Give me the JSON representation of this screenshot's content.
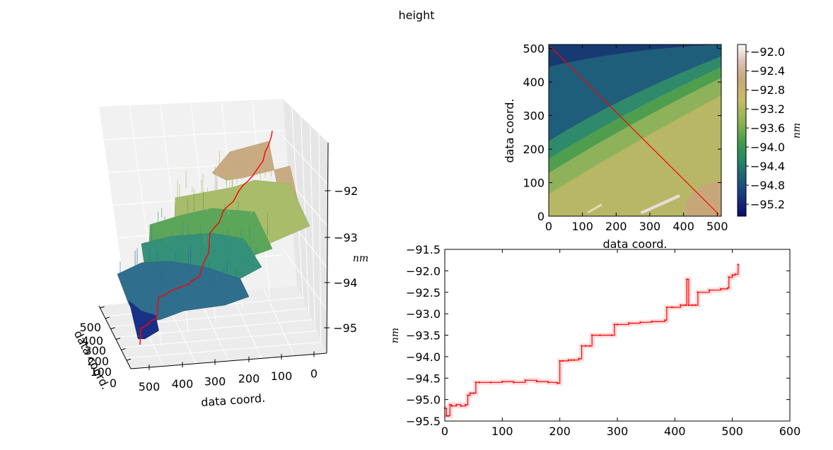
{
  "figure": {
    "title": "height"
  },
  "chart_data": [
    {
      "type": "surface3d",
      "xlabel": "data coord.",
      "ylabel": "data coord.",
      "zlabel": "nm",
      "x_ticks": [
        "500",
        "400",
        "300",
        "200",
        "100",
        "0"
      ],
      "y_ticks": [
        "500",
        "400",
        "300",
        "200",
        "100",
        "0"
      ],
      "z_ticks": [
        "−92",
        "−93",
        "−94",
        "−95"
      ],
      "colormap": "gist_earth",
      "profile_color": "#ff0000"
    },
    {
      "type": "heatmap",
      "xlabel": "data coord.",
      "ylabel": "data coord.",
      "xlim": [
        0,
        512
      ],
      "ylim": [
        0,
        512
      ],
      "x_ticks": [
        "0",
        "100",
        "200",
        "300",
        "400",
        "500"
      ],
      "y_ticks": [
        "0",
        "100",
        "200",
        "300",
        "400",
        "500"
      ],
      "colorbar": {
        "label": "nm",
        "ticks": [
          "−92.0",
          "−92.4",
          "−92.8",
          "−93.2",
          "−93.6",
          "−94.0",
          "−94.4",
          "−94.8",
          "−95.2"
        ],
        "tick_values": [
          -92.0,
          -92.4,
          -92.8,
          -93.2,
          -93.6,
          -94.0,
          -94.4,
          -94.8,
          -95.2
        ],
        "range": [
          -95.45,
          -91.85
        ]
      },
      "profile_line": {
        "from": [
          5,
          505
        ],
        "to": [
          505,
          5
        ],
        "color": "#ff0000"
      }
    },
    {
      "type": "line",
      "xlabel": "",
      "ylabel": "nm",
      "xlim": [
        0,
        600
      ],
      "ylim": [
        -95.5,
        -91.5
      ],
      "x_ticks": [
        "0",
        "100",
        "200",
        "300",
        "400",
        "500",
        "600"
      ],
      "y_ticks": [
        "−91.5",
        "−92.0",
        "−92.5",
        "−93.0",
        "−93.5",
        "−94.0",
        "−94.5",
        "−95.0",
        "−95.5"
      ],
      "series": [
        {
          "color": "#ff0000",
          "x": [
            0,
            3,
            6,
            9,
            12,
            20,
            28,
            36,
            40,
            44,
            50,
            54,
            60,
            80,
            100,
            120,
            140,
            160,
            180,
            196,
            200,
            205,
            215,
            220,
            225,
            233,
            238,
            245,
            252,
            256,
            270,
            290,
            295,
            300,
            320,
            340,
            360,
            383,
            386,
            395,
            410,
            418,
            421,
            424,
            430,
            436,
            440,
            460,
            480,
            492,
            494,
            500,
            505,
            510
          ],
          "y": [
            -95.2,
            -95.38,
            -95.38,
            -95.12,
            -95.15,
            -95.12,
            -95.15,
            -95.12,
            -94.9,
            -94.85,
            -94.85,
            -94.6,
            -94.6,
            -94.6,
            -94.58,
            -94.6,
            -94.55,
            -94.58,
            -94.6,
            -94.62,
            -94.1,
            -94.1,
            -94.08,
            -94.08,
            -94.08,
            -94.05,
            -93.75,
            -93.75,
            -93.75,
            -93.5,
            -93.5,
            -93.5,
            -93.25,
            -93.25,
            -93.22,
            -93.2,
            -93.18,
            -93.15,
            -92.85,
            -92.85,
            -92.8,
            -92.8,
            -92.2,
            -92.8,
            -92.8,
            -92.8,
            -92.5,
            -92.45,
            -92.42,
            -92.4,
            -92.15,
            -92.1,
            -92.08,
            -91.85
          ]
        }
      ]
    }
  ]
}
